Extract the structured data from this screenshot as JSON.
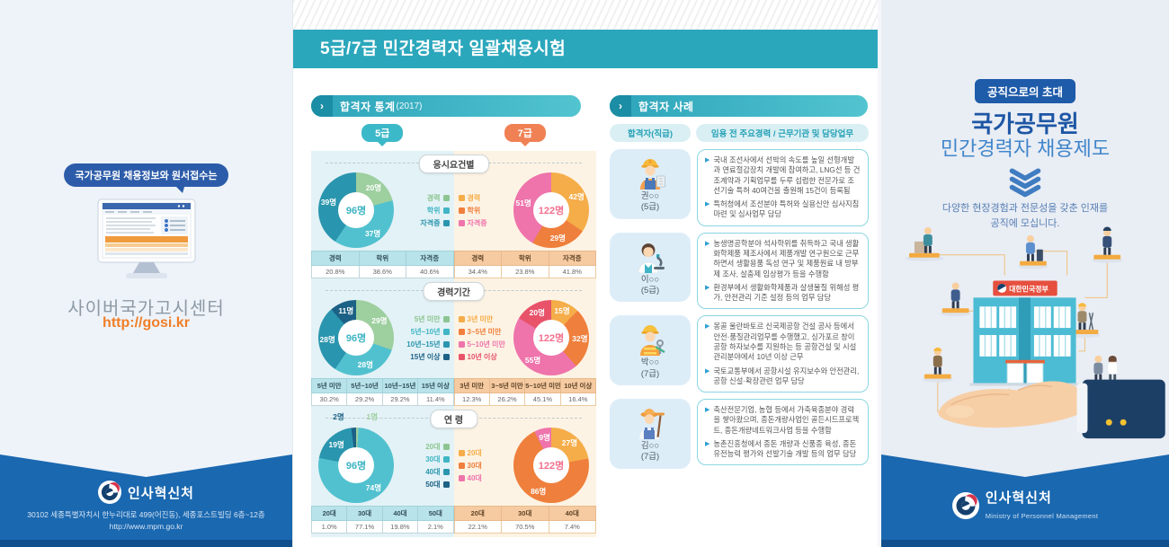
{
  "left": {
    "bubble": "국가공무원 채용정보와 원서접수는",
    "site_name": "사이버국가고시센터",
    "site_url": "http://gosi.kr",
    "footer": {
      "org": "인사혁신처",
      "address": "30102 세종특별자치시 한누리대로 499(어진동), 세종포스트빌딩 6층~12층",
      "url": "http://www.mpm.go.kr"
    }
  },
  "mid": {
    "title": "5급/7급 민간경력자 일괄채용시험",
    "stats": {
      "ribbon": "합격자 통계",
      "ribbon_year": "(2017)",
      "badge5": "5급",
      "badge7": "7급",
      "groups": [
        {
          "title": "응시요건별",
          "donut5": {
            "total": "96명",
            "center_color": "#3bb3c3",
            "segments": [
              {
                "value": 20,
                "label": "20명",
                "color": "#9ecf9f"
              },
              {
                "value": 37,
                "label": "37명",
                "color": "#52c1cf"
              },
              {
                "value": 39,
                "label": "39명",
                "color": "#2a95ae"
              }
            ]
          },
          "legend5": [
            {
              "label": "경력",
              "color": "#8cc591"
            },
            {
              "label": "학위",
              "color": "#3fb5c5"
            },
            {
              "label": "자격증",
              "color": "#2a95ae"
            }
          ],
          "legend7": [
            {
              "label": "경력",
              "color": "#f5ad49"
            },
            {
              "label": "학위",
              "color": "#ef7f3c"
            },
            {
              "label": "자격증",
              "color": "#ee74ab"
            }
          ],
          "donut7": {
            "total": "122명",
            "center_color": "#f2708e",
            "segments": [
              {
                "value": 42,
                "label": "42명",
                "color": "#f5ad49"
              },
              {
                "value": 29,
                "label": "29명",
                "color": "#ef7f3c"
              },
              {
                "value": 51,
                "label": "51명",
                "color": "#ee74ab"
              }
            ]
          },
          "table5": {
            "headers": [
              "경력",
              "학위",
              "자격증"
            ],
            "values": [
              "20.8%",
              "38.6%",
              "40.6%"
            ]
          },
          "table7": {
            "headers": [
              "경력",
              "학위",
              "자격증"
            ],
            "values": [
              "34.4%",
              "23.8%",
              "41.8%"
            ]
          }
        },
        {
          "title": "경력기간",
          "donut5": {
            "total": "96명",
            "center_color": "#3bb3c3",
            "segments": [
              {
                "value": 29,
                "label": "29명",
                "color": "#9ecf9f"
              },
              {
                "value": 28,
                "label": "28명",
                "color": "#52c1cf"
              },
              {
                "value": 28,
                "label": "28명",
                "color": "#2a95ae"
              },
              {
                "value": 11,
                "label": "11명",
                "color": "#1c6186"
              }
            ]
          },
          "legend5": [
            {
              "label": "5년 미만",
              "color": "#8cc591"
            },
            {
              "label": "5년~10년",
              "color": "#3fb5c5"
            },
            {
              "label": "10년~15년",
              "color": "#2a95ae"
            },
            {
              "label": "15년 이상",
              "color": "#1c6186"
            }
          ],
          "legend7": [
            {
              "label": "3년 미만",
              "color": "#f5ad49"
            },
            {
              "label": "3~5년 미만",
              "color": "#ef7f3c"
            },
            {
              "label": "5~10년 미만",
              "color": "#ee74ab"
            },
            {
              "label": "10년 이상",
              "color": "#e8536a"
            }
          ],
          "donut7": {
            "total": "122명",
            "center_color": "#f2708e",
            "segments": [
              {
                "value": 15,
                "label": "15명",
                "color": "#f5ad49"
              },
              {
                "value": 32,
                "label": "32명",
                "color": "#ef7f3c"
              },
              {
                "value": 55,
                "label": "55명",
                "color": "#ee74ab"
              },
              {
                "value": 20,
                "label": "20명",
                "color": "#e8536a"
              }
            ]
          },
          "table5": {
            "headers": [
              "5년 미만",
              "5년~10년",
              "10년~15년",
              "15년 이상"
            ],
            "values": [
              "30.2%",
              "29.2%",
              "29.2%",
              "11.4%"
            ]
          },
          "table7": {
            "headers": [
              "3년 미만",
              "3~5년 미만",
              "5~10년 미만",
              "10년 이상"
            ],
            "values": [
              "12.3%",
              "26.2%",
              "45.1%",
              "16.4%"
            ]
          }
        },
        {
          "title": "연 령",
          "donut5": {
            "total": "96명",
            "center_color": "#3bb3c3",
            "segments": [
              {
                "value": 1,
                "label": "1명",
                "color": "#9ecf9f"
              },
              {
                "value": 74,
                "label": "74명",
                "color": "#52c1cf"
              },
              {
                "value": 19,
                "label": "19명",
                "color": "#2a95ae"
              },
              {
                "value": 2,
                "label": "2명",
                "color": "#1c6186"
              }
            ]
          },
          "legend5": [
            {
              "label": "20대",
              "color": "#8cc591"
            },
            {
              "label": "30대",
              "color": "#3fb5c5"
            },
            {
              "label": "40대",
              "color": "#2a95ae"
            },
            {
              "label": "50대",
              "color": "#1c6186"
            }
          ],
          "legend7": [
            {
              "label": "20대",
              "color": "#f5ad49"
            },
            {
              "label": "30대",
              "color": "#ef7f3c"
            },
            {
              "label": "40대",
              "color": "#ee74ab"
            }
          ],
          "donut7": {
            "total": "122명",
            "center_color": "#f2708e",
            "segments": [
              {
                "value": 27,
                "label": "27명",
                "color": "#f5ad49"
              },
              {
                "value": 86,
                "label": "86명",
                "color": "#ef7f3c"
              },
              {
                "value": 9,
                "label": "9명",
                "color": "#ee74ab"
              }
            ]
          },
          "table5": {
            "headers": [
              "20대",
              "30대",
              "40대",
              "50대"
            ],
            "values": [
              "1.0%",
              "77.1%",
              "19.8%",
              "2.1%"
            ]
          },
          "table7": {
            "headers": [
              "20대",
              "30대",
              "40대"
            ],
            "values": [
              "22.1%",
              "70.5%",
              "7.4%"
            ]
          }
        }
      ]
    },
    "cases": {
      "ribbon": "합격자 사례",
      "col1_header": "합격자(직급)",
      "col2_header": "임용 전 주요경력 / 근무기관 및 담당업무",
      "items": [
        {
          "name": "권○○",
          "grade": "(5급)",
          "bullets": [
            "국내 조선사에서 선박의 속도를 높일 선형개발과 연료절감장치 개발에 참여하고, LNG선 등 건조계약과 기획업무를 두루 섭렵한 전문가로 조선기술 특허 40여건을 출원해 15건이 등록됨",
            "특허청에서 조선분야 특허와 실용신안 심사지침 마련 및 심사업무 담당"
          ]
        },
        {
          "name": "이○○",
          "grade": "(5급)",
          "bullets": [
            "농생명공학분야 석사학위를 취득하고 국내 생활화학제품 제조사에서 제품개발 연구원으로 근무하면서 생활용품 독성 연구 및 제품원료 내 방부제 조사, 살충제 임상평가 등을 수행함",
            "환경부에서 생활화학제품과 살생물질 위해성 평가, 안전관리 기준 설정 등의 업무 담당"
          ]
        },
        {
          "name": "박○○",
          "grade": "(7급)",
          "bullets": [
            "몽골 울란바토르 신국제공항 건설 공사 등에서 안전·품질관리업무를 수행했고, 싱가포르 창이공항 하자보수를 지원하는 등 공항건설 및 시설관리분야에서 10년 이상 근무",
            "국토교통부에서 공항시설 유지보수와 안전관리, 공항 신설·확장관련 업무 담당"
          ]
        },
        {
          "name": "김○○",
          "grade": "(7급)",
          "bullets": [
            "축산전문기업, 농협 등에서 가축육종분야 경력을 쌓아왔으며, 종돈개량사업인 골든시드프로젝트, 종돈개량네트워크사업 등을 수행함",
            "농촌진흥청에서 종돈 개량과 신품종 육성, 종돈 유전능력 평가와 선발기술 개발 등의 업무 담당"
          ]
        }
      ]
    }
  },
  "right": {
    "badge": "공직으로의 초대",
    "title1": "국가공무원",
    "title2": "민간경력자 채용제도",
    "sub1": "다양한 현장경험과 전문성을 갖춘 인재를",
    "sub2": "공직에 모십니다.",
    "building_sign": "대한민국정부",
    "footer": {
      "org": "인사혁신처",
      "en": "Ministry of Personnel Management"
    }
  },
  "chart_data": [
    {
      "type": "pie",
      "title": "응시요건별 - 5급 (총 96명)",
      "categories": [
        "경력",
        "학위",
        "자격증"
      ],
      "values": [
        20,
        37,
        39
      ],
      "percentages": [
        20.8,
        38.6,
        40.6
      ],
      "legend_position": "right"
    },
    {
      "type": "pie",
      "title": "응시요건별 - 7급 (총 122명)",
      "categories": [
        "경력",
        "학위",
        "자격증"
      ],
      "values": [
        42,
        29,
        51
      ],
      "percentages": [
        34.4,
        23.8,
        41.8
      ],
      "legend_position": "left"
    },
    {
      "type": "pie",
      "title": "경력기간 - 5급 (총 96명)",
      "categories": [
        "5년 미만",
        "5년~10년",
        "10년~15년",
        "15년 이상"
      ],
      "values": [
        29,
        28,
        28,
        11
      ],
      "percentages": [
        30.2,
        29.2,
        29.2,
        11.4
      ],
      "legend_position": "right"
    },
    {
      "type": "pie",
      "title": "경력기간 - 7급 (총 122명)",
      "categories": [
        "3년 미만",
        "3~5년 미만",
        "5~10년 미만",
        "10년 이상"
      ],
      "values": [
        15,
        32,
        55,
        20
      ],
      "percentages": [
        12.3,
        26.2,
        45.1,
        16.4
      ],
      "legend_position": "left"
    },
    {
      "type": "pie",
      "title": "연령 - 5급 (총 96명)",
      "categories": [
        "20대",
        "30대",
        "40대",
        "50대"
      ],
      "values": [
        1,
        74,
        19,
        2
      ],
      "percentages": [
        1.0,
        77.1,
        19.8,
        2.1
      ],
      "legend_position": "right"
    },
    {
      "type": "pie",
      "title": "연령 - 7급 (총 122명)",
      "categories": [
        "20대",
        "30대",
        "40대"
      ],
      "values": [
        27,
        86,
        9
      ],
      "percentages": [
        22.1,
        70.5,
        7.4
      ],
      "legend_position": "left"
    }
  ]
}
